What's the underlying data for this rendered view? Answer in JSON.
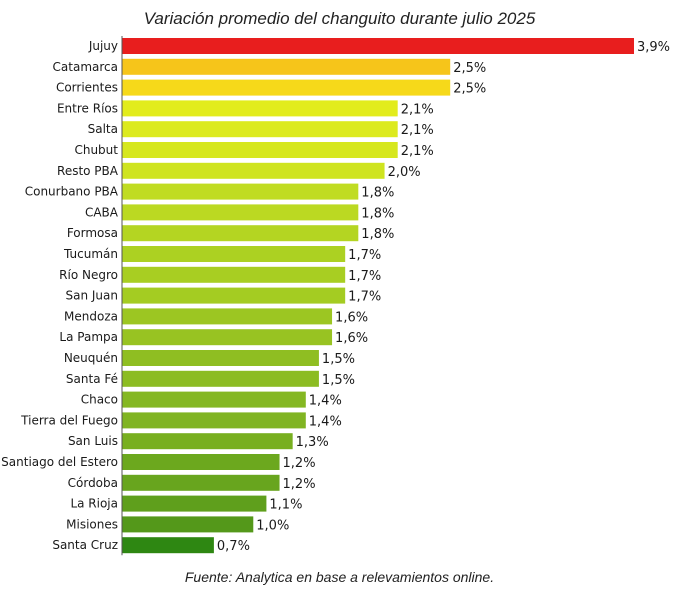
{
  "chart_data": {
    "type": "bar",
    "orientation": "horizontal",
    "title": "Variación promedio del changuito durante julio 2025",
    "source": "Fuente: Analytica en base a relevamientos online.",
    "xlabel": "",
    "ylabel": "",
    "xlim": [
      0,
      3.9
    ],
    "categories": [
      "Jujuy",
      "Catamarca",
      "Corrientes",
      "Entre Ríos",
      "Salta",
      "Chubut",
      "Resto PBA",
      "Conurbano PBA",
      "CABA",
      "Formosa",
      "Tucumán",
      "Río Negro",
      "San Juan",
      "Mendoza",
      "La Pampa",
      "Neuquén",
      "Santa Fé",
      "Chaco",
      "Tierra del Fuego",
      "San Luis",
      "Santiago del Estero",
      "Córdoba",
      "La Rioja",
      "Misiones",
      "Santa Cruz"
    ],
    "values": [
      3.9,
      2.5,
      2.5,
      2.1,
      2.1,
      2.1,
      2.0,
      1.8,
      1.8,
      1.8,
      1.7,
      1.7,
      1.7,
      1.6,
      1.6,
      1.5,
      1.5,
      1.4,
      1.4,
      1.3,
      1.2,
      1.2,
      1.1,
      1.0,
      0.7
    ],
    "value_labels": [
      "3,9%",
      "2,5%",
      "2,5%",
      "2,1%",
      "2,1%",
      "2,1%",
      "2,0%",
      "1,8%",
      "1,8%",
      "1,8%",
      "1,7%",
      "1,7%",
      "1,7%",
      "1,6%",
      "1,6%",
      "1,5%",
      "1,5%",
      "1,4%",
      "1,4%",
      "1,3%",
      "1,2%",
      "1,2%",
      "1,1%",
      "1,0%",
      "0,7%"
    ],
    "bar_colors": [
      "#e81e1e",
      "#f6c51a",
      "#f6d91a",
      "#e2ec1c",
      "#dcea1e",
      "#d6e71e",
      "#cfe420",
      "#c0dc22",
      "#bbd922",
      "#b4d522",
      "#acd122",
      "#a8ce22",
      "#a4cc22",
      "#9cc622",
      "#98c322",
      "#8fbe22",
      "#8cbc22",
      "#84b722",
      "#80b422",
      "#78af20",
      "#6ca81e",
      "#68a51e",
      "#5f9f1c",
      "#54981a",
      "#2e8712"
    ],
    "grid": false,
    "legend": "none"
  }
}
